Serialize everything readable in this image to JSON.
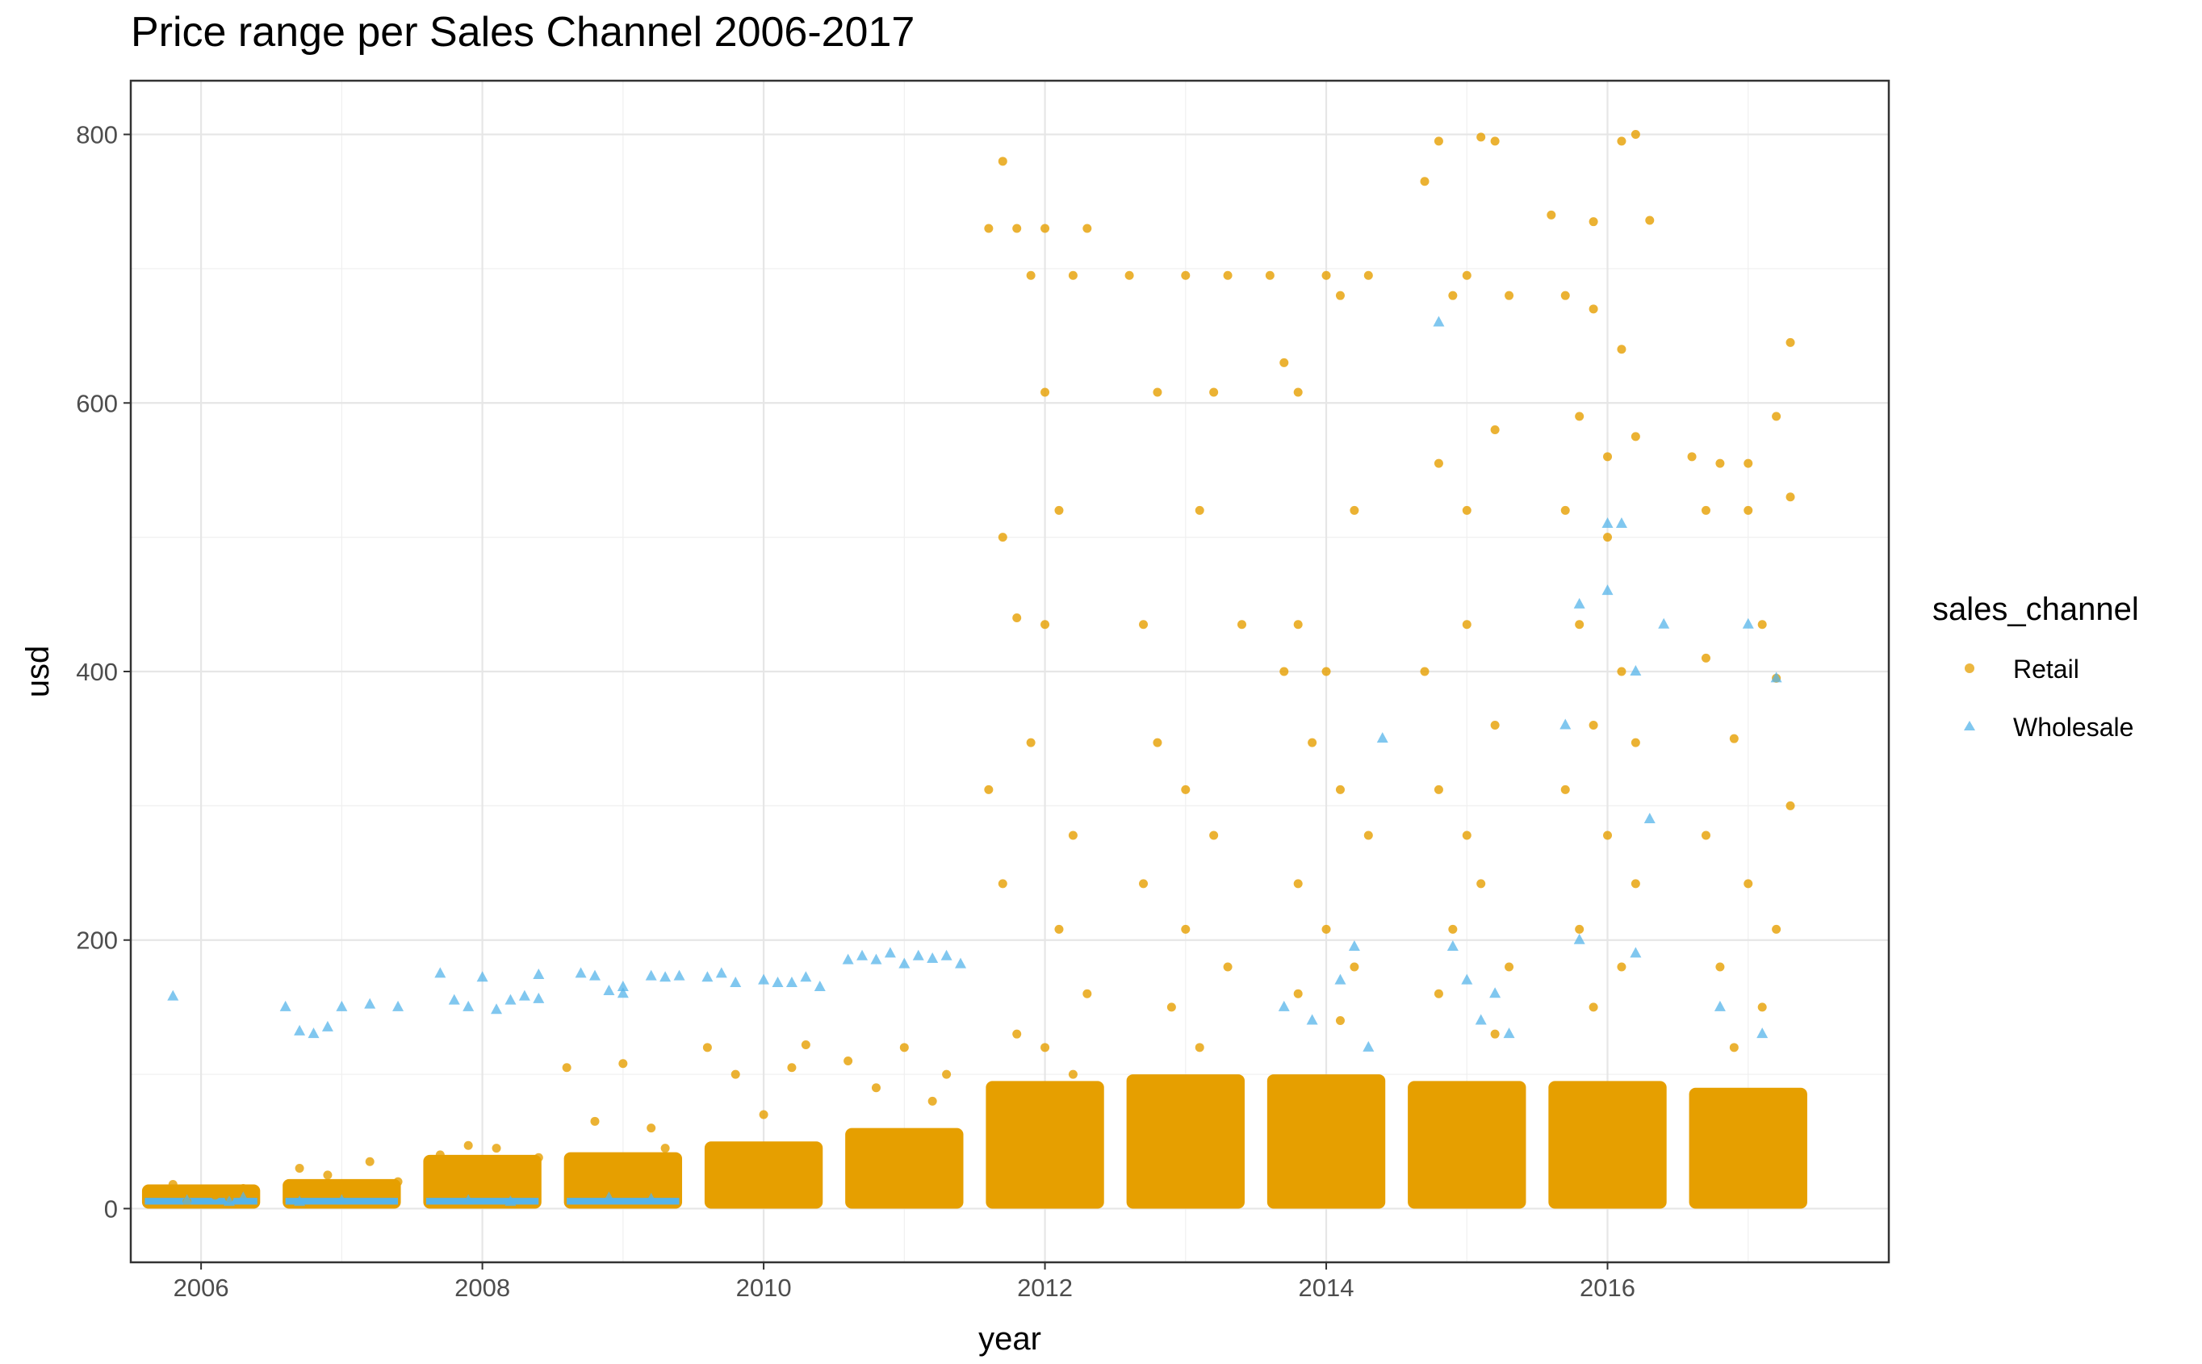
{
  "chart_data": {
    "type": "scatter",
    "title": "Price range per Sales Channel 2006-2017",
    "xlabel": "year",
    "ylabel": "usd",
    "xlim": [
      2005.5,
      2018.0
    ],
    "ylim": [
      -40,
      840
    ],
    "x_ticks": [
      "2006",
      "2008",
      "2010",
      "2012",
      "2014",
      "2016"
    ],
    "y_ticks": [
      "0",
      "200",
      "400",
      "600",
      "800"
    ],
    "grid": true,
    "legend": {
      "title": "sales_channel",
      "placement": "right"
    },
    "series": [
      {
        "name": "Retail",
        "marker": "circle",
        "color": "#E69F00",
        "points": [
          [
            2005.9,
            5
          ],
          [
            2006.1,
            10
          ],
          [
            2006.3,
            15
          ],
          [
            2005.8,
            18
          ],
          [
            2006.2,
            8
          ],
          [
            2006.7,
            30
          ],
          [
            2006.9,
            25
          ],
          [
            2007.2,
            35
          ],
          [
            2007.4,
            20
          ],
          [
            2007.7,
            40
          ],
          [
            2007.9,
            47
          ],
          [
            2008.1,
            45
          ],
          [
            2008.4,
            38
          ],
          [
            2008.6,
            105
          ],
          [
            2008.8,
            65
          ],
          [
            2009.0,
            108
          ],
          [
            2009.2,
            60
          ],
          [
            2009.3,
            45
          ],
          [
            2009.6,
            120
          ],
          [
            2009.8,
            100
          ],
          [
            2010.0,
            70
          ],
          [
            2010.2,
            105
          ],
          [
            2010.3,
            122
          ],
          [
            2010.6,
            110
          ],
          [
            2010.8,
            90
          ],
          [
            2011.0,
            120
          ],
          [
            2011.2,
            80
          ],
          [
            2011.3,
            100
          ],
          [
            2011.6,
            730
          ],
          [
            2011.7,
            780
          ],
          [
            2011.8,
            730
          ],
          [
            2011.9,
            695
          ],
          [
            2012.0,
            730
          ],
          [
            2012.1,
            520
          ],
          [
            2012.0,
            608
          ],
          [
            2012.2,
            695
          ],
          [
            2012.3,
            730
          ],
          [
            2011.7,
            500
          ],
          [
            2011.8,
            440
          ],
          [
            2012.0,
            435
          ],
          [
            2011.6,
            312
          ],
          [
            2011.9,
            347
          ],
          [
            2012.2,
            278
          ],
          [
            2011.7,
            242
          ],
          [
            2012.1,
            208
          ],
          [
            2012.3,
            160
          ],
          [
            2011.8,
            130
          ],
          [
            2012.0,
            120
          ],
          [
            2012.2,
            100
          ],
          [
            2012.6,
            695
          ],
          [
            2012.8,
            608
          ],
          [
            2013.0,
            695
          ],
          [
            2013.2,
            608
          ],
          [
            2013.3,
            695
          ],
          [
            2012.7,
            435
          ],
          [
            2013.1,
            520
          ],
          [
            2013.4,
            435
          ],
          [
            2012.8,
            347
          ],
          [
            2013.0,
            312
          ],
          [
            2013.2,
            278
          ],
          [
            2012.7,
            242
          ],
          [
            2013.0,
            208
          ],
          [
            2013.3,
            180
          ],
          [
            2012.9,
            150
          ],
          [
            2013.1,
            120
          ],
          [
            2013.6,
            695
          ],
          [
            2013.8,
            608
          ],
          [
            2014.0,
            695
          ],
          [
            2014.1,
            680
          ],
          [
            2014.3,
            695
          ],
          [
            2013.7,
            630
          ],
          [
            2013.8,
            435
          ],
          [
            2014.0,
            400
          ],
          [
            2014.2,
            520
          ],
          [
            2013.7,
            400
          ],
          [
            2013.9,
            347
          ],
          [
            2014.1,
            312
          ],
          [
            2014.3,
            278
          ],
          [
            2013.8,
            242
          ],
          [
            2014.0,
            208
          ],
          [
            2014.2,
            180
          ],
          [
            2013.8,
            160
          ],
          [
            2014.1,
            140
          ],
          [
            2014.7,
            765
          ],
          [
            2014.8,
            795
          ],
          [
            2015.1,
            798
          ],
          [
            2015.2,
            795
          ],
          [
            2015.0,
            695
          ],
          [
            2014.9,
            680
          ],
          [
            2015.3,
            680
          ],
          [
            2014.8,
            555
          ],
          [
            2015.0,
            520
          ],
          [
            2015.2,
            580
          ],
          [
            2014.7,
            400
          ],
          [
            2015.0,
            435
          ],
          [
            2015.2,
            360
          ],
          [
            2014.8,
            312
          ],
          [
            2015.0,
            278
          ],
          [
            2015.1,
            242
          ],
          [
            2014.9,
            208
          ],
          [
            2015.3,
            180
          ],
          [
            2014.8,
            160
          ],
          [
            2015.2,
            130
          ],
          [
            2015.6,
            740
          ],
          [
            2015.9,
            735
          ],
          [
            2016.1,
            795
          ],
          [
            2016.2,
            800
          ],
          [
            2016.3,
            736
          ],
          [
            2015.7,
            680
          ],
          [
            2015.9,
            670
          ],
          [
            2016.1,
            640
          ],
          [
            2015.8,
            590
          ],
          [
            2016.0,
            560
          ],
          [
            2016.2,
            575
          ],
          [
            2015.7,
            520
          ],
          [
            2016.0,
            500
          ],
          [
            2015.8,
            435
          ],
          [
            2016.1,
            400
          ],
          [
            2015.9,
            360
          ],
          [
            2016.2,
            347
          ],
          [
            2015.7,
            312
          ],
          [
            2016.0,
            278
          ],
          [
            2016.2,
            242
          ],
          [
            2015.8,
            208
          ],
          [
            2016.1,
            180
          ],
          [
            2015.9,
            150
          ],
          [
            2016.6,
            560
          ],
          [
            2016.8,
            555
          ],
          [
            2017.0,
            555
          ],
          [
            2017.2,
            590
          ],
          [
            2017.3,
            645
          ],
          [
            2016.7,
            520
          ],
          [
            2017.0,
            520
          ],
          [
            2017.3,
            530
          ],
          [
            2016.7,
            410
          ],
          [
            2017.1,
            435
          ],
          [
            2017.2,
            395
          ],
          [
            2016.9,
            350
          ],
          [
            2017.3,
            300
          ],
          [
            2016.7,
            278
          ],
          [
            2017.0,
            242
          ],
          [
            2017.2,
            208
          ],
          [
            2016.8,
            180
          ],
          [
            2017.1,
            150
          ],
          [
            2016.9,
            120
          ]
        ]
      },
      {
        "name": "Wholesale",
        "marker": "triangle",
        "color": "#56B4E9",
        "points": [
          [
            2005.8,
            158
          ],
          [
            2006.2,
            5
          ],
          [
            2005.9,
            6
          ],
          [
            2006.3,
            8
          ],
          [
            2006.6,
            150
          ],
          [
            2006.7,
            132
          ],
          [
            2006.8,
            130
          ],
          [
            2006.9,
            135
          ],
          [
            2007.0,
            150
          ],
          [
            2007.2,
            152
          ],
          [
            2007.4,
            150
          ],
          [
            2006.7,
            5
          ],
          [
            2007.0,
            6
          ],
          [
            2007.7,
            175
          ],
          [
            2007.8,
            155
          ],
          [
            2007.9,
            150
          ],
          [
            2008.0,
            172
          ],
          [
            2008.1,
            148
          ],
          [
            2008.2,
            155
          ],
          [
            2008.3,
            158
          ],
          [
            2008.4,
            174
          ],
          [
            2008.4,
            156
          ],
          [
            2007.9,
            6
          ],
          [
            2008.2,
            5
          ],
          [
            2008.7,
            175
          ],
          [
            2008.8,
            173
          ],
          [
            2008.9,
            162
          ],
          [
            2009.0,
            165
          ],
          [
            2009.2,
            173
          ],
          [
            2009.3,
            172
          ],
          [
            2009.4,
            173
          ],
          [
            2009.0,
            160
          ],
          [
            2008.9,
            8
          ],
          [
            2009.2,
            7
          ],
          [
            2009.6,
            172
          ],
          [
            2009.7,
            175
          ],
          [
            2009.8,
            168
          ],
          [
            2010.0,
            170
          ],
          [
            2010.1,
            168
          ],
          [
            2010.2,
            168
          ],
          [
            2010.3,
            172
          ],
          [
            2010.4,
            165
          ],
          [
            2010.6,
            185
          ],
          [
            2010.7,
            188
          ],
          [
            2010.8,
            185
          ],
          [
            2010.9,
            190
          ],
          [
            2011.0,
            182
          ],
          [
            2011.1,
            188
          ],
          [
            2011.2,
            186
          ],
          [
            2011.3,
            188
          ],
          [
            2011.4,
            182
          ],
          [
            2013.7,
            150
          ],
          [
            2013.9,
            140
          ],
          [
            2014.1,
            170
          ],
          [
            2014.2,
            195
          ],
          [
            2014.3,
            120
          ],
          [
            2014.4,
            350
          ],
          [
            2014.8,
            660
          ],
          [
            2014.9,
            195
          ],
          [
            2015.0,
            170
          ],
          [
            2015.1,
            140
          ],
          [
            2015.2,
            160
          ],
          [
            2015.3,
            130
          ],
          [
            2015.7,
            360
          ],
          [
            2015.8,
            450
          ],
          [
            2016.0,
            510
          ],
          [
            2016.0,
            460
          ],
          [
            2016.1,
            510
          ],
          [
            2016.2,
            400
          ],
          [
            2016.3,
            290
          ],
          [
            2016.4,
            435
          ],
          [
            2015.8,
            200
          ],
          [
            2016.2,
            190
          ],
          [
            2017.0,
            435
          ],
          [
            2017.2,
            395
          ],
          [
            2016.8,
            150
          ],
          [
            2017.1,
            130
          ]
        ]
      }
    ]
  }
}
